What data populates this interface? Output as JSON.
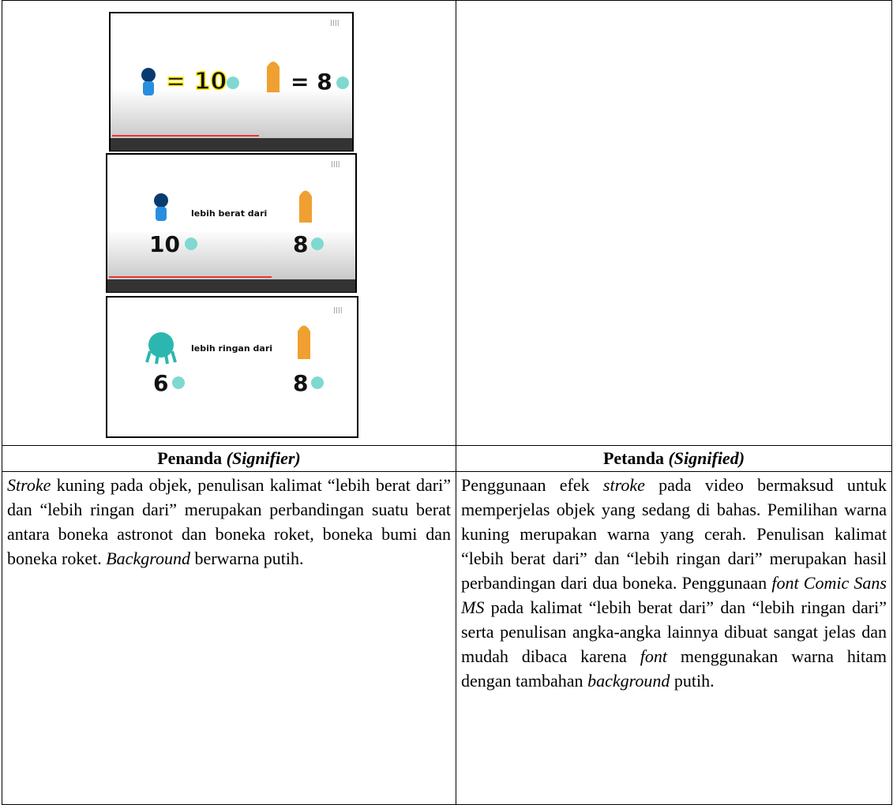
{
  "screenshots": [
    {
      "texts": [
        "= 10",
        "= 8"
      ]
    },
    {
      "texts": [
        "lebih berat dari",
        "10",
        "8"
      ]
    },
    {
      "texts": [
        "lebih ringan dari",
        "6",
        "8"
      ]
    }
  ],
  "table": {
    "header": [
      [
        "Penanda ",
        "(Signifier)"
      ],
      [
        "Petanda ",
        "(Signified)"
      ]
    ],
    "body": [
      [
        "Stroke",
        " kuning pada objek, penulisan kalimat “lebih berat dari” dan “lebih ringan dari” merupakan perbandingan suatu berat antara boneka astronot dan boneka roket, boneka bumi dan boneka roket. ",
        "Background",
        " berwarna putih."
      ],
      [
        "Penggunaan efek ",
        "stroke",
        " pada video bermaksud untuk memperjelas objek yang sedang di bahas. Pemilihan warna kuning merupakan warna yang cerah. Penulisan kalimat “lebih berat dari” dan “lebih ringan dari” merupakan hasil perbandingan dari dua boneka. Penggunaan ",
        "font Comic Sans MS",
        " pada kalimat “lebih berat dari” dan “lebih ringan dari” serta penulisan angka-angka lainnya dibuat sangat jelas dan mudah dibaca karena ",
        "font",
        " menggunakan warna hitam dengan  tambahan ",
        "background",
        " putih."
      ]
    ]
  }
}
